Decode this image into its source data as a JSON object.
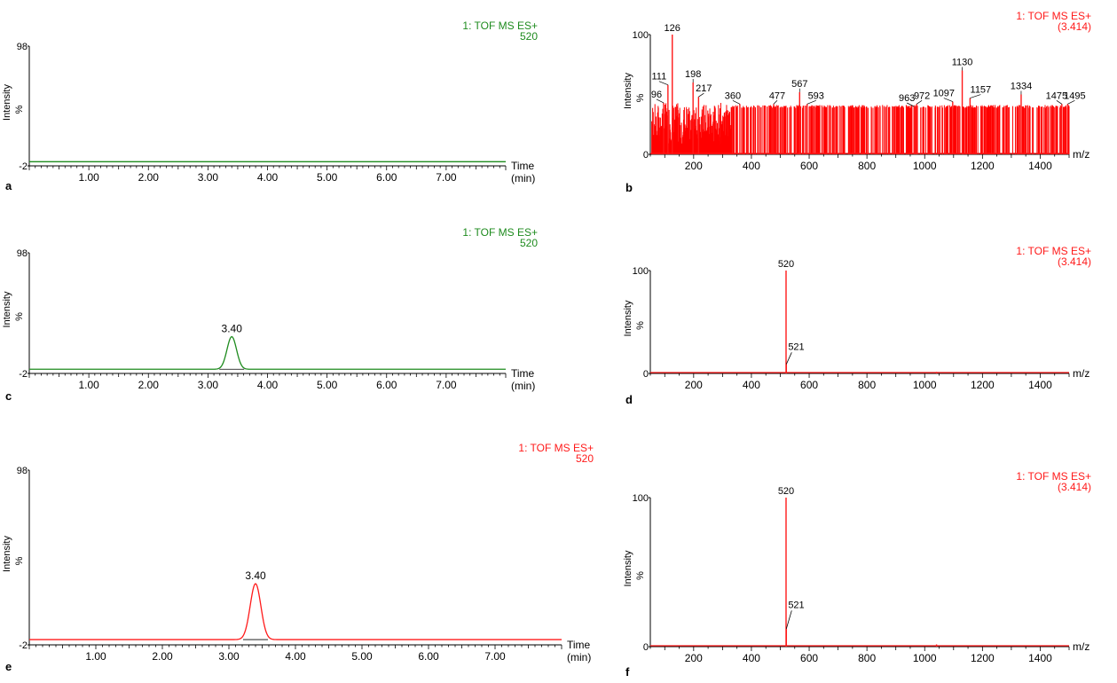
{
  "colors": {
    "green": "#1e8b1e",
    "red": "#ff1a1a",
    "axis": "#000000",
    "spec_b_fill": "#ff0000"
  },
  "chart_data": [
    {
      "id": "a",
      "type": "line",
      "panel_label": "a",
      "title_lines": [
        "1: TOF MS ES+",
        "520"
      ],
      "title_color": "green",
      "line_color": "green",
      "xlabel_lines": [
        "Time",
        "(min)"
      ],
      "ylabel": "Intensity",
      "ylabel_unit": "%",
      "xlim": [
        0,
        8.0
      ],
      "ylim": [
        -2,
        98
      ],
      "x_ticks": [
        "1.00",
        "2.00",
        "3.00",
        "4.00",
        "5.00",
        "6.00",
        "7.00"
      ],
      "y_ticks": [
        "98",
        "-2"
      ],
      "baseline": 0,
      "peaks": [],
      "annotations": []
    },
    {
      "id": "b",
      "type": "bar",
      "panel_label": "b",
      "title_lines": [
        "1: TOF MS ES+",
        "(3.414)"
      ],
      "title_color": "red",
      "line_color": "red",
      "xlabel_lines": [
        "m/z"
      ],
      "ylabel": "Intensity",
      "ylabel_unit": "%",
      "xlim": [
        50,
        1500
      ],
      "ylim": [
        0,
        100
      ],
      "x_ticks": [
        "200",
        "400",
        "600",
        "800",
        "1000",
        "1200",
        "1400"
      ],
      "y_ticks": [
        "100",
        "0"
      ],
      "noise": {
        "from": 55,
        "to": 1500,
        "level": 40,
        "dense_until": 330
      },
      "peaks": [
        {
          "x": 96,
          "y": 43,
          "label": "96"
        },
        {
          "x": 111,
          "y": 58,
          "label": "111"
        },
        {
          "x": 126,
          "y": 100,
          "label": "126"
        },
        {
          "x": 198,
          "y": 60,
          "label": "198"
        },
        {
          "x": 217,
          "y": 48,
          "label": "217"
        },
        {
          "x": 360,
          "y": 42,
          "label": "360"
        },
        {
          "x": 477,
          "y": 42,
          "label": "477"
        },
        {
          "x": 567,
          "y": 52,
          "label": "567"
        },
        {
          "x": 593,
          "y": 42,
          "label": "593"
        },
        {
          "x": 963,
          "y": 40,
          "label": "963"
        },
        {
          "x": 972,
          "y": 42,
          "label": "972"
        },
        {
          "x": 1097,
          "y": 44,
          "label": "1097"
        },
        {
          "x": 1130,
          "y": 70,
          "label": "1130"
        },
        {
          "x": 1157,
          "y": 47,
          "label": "1157"
        },
        {
          "x": 1334,
          "y": 50,
          "label": "1334"
        },
        {
          "x": 1475,
          "y": 42,
          "label": "1475"
        },
        {
          "x": 1495,
          "y": 42,
          "label": "1495"
        }
      ]
    },
    {
      "id": "c",
      "type": "line",
      "panel_label": "c",
      "title_lines": [
        "1: TOF MS ES+",
        "520"
      ],
      "title_color": "green",
      "line_color": "green",
      "xlabel_lines": [
        "Time",
        "(min)"
      ],
      "ylabel": "Intensity",
      "ylabel_unit": "%",
      "xlim": [
        0,
        8.0
      ],
      "ylim": [
        -2,
        98
      ],
      "x_ticks": [
        "1.00",
        "2.00",
        "3.00",
        "4.00",
        "5.00",
        "6.00",
        "7.00"
      ],
      "y_ticks": [
        "98",
        "-2"
      ],
      "baseline": 0,
      "peaks": [
        {
          "x": 3.4,
          "y": 27,
          "width": 0.08,
          "label": "3.40"
        }
      ]
    },
    {
      "id": "d",
      "type": "bar",
      "panel_label": "d",
      "title_lines": [
        "1: TOF MS ES+",
        "(3.414)"
      ],
      "title_color": "red",
      "line_color": "red",
      "xlabel_lines": [
        "m/z"
      ],
      "ylabel": "Intensity",
      "ylabel_unit": "%",
      "xlim": [
        50,
        1500
      ],
      "ylim": [
        0,
        100
      ],
      "x_ticks": [
        "200",
        "400",
        "600",
        "800",
        "1000",
        "1200",
        "1400"
      ],
      "y_ticks": [
        "100",
        "0"
      ],
      "peaks": [
        {
          "x": 520,
          "y": 100,
          "label": "520"
        },
        {
          "x": 521,
          "y": 9,
          "label": "521"
        },
        {
          "x": 1041,
          "y": 1.5,
          "label": ""
        }
      ]
    },
    {
      "id": "e",
      "type": "line",
      "panel_label": "e",
      "title_lines": [
        "1: TOF MS ES+",
        "520"
      ],
      "title_color": "red",
      "line_color": "red",
      "xlabel_lines": [
        "Time",
        "(min)"
      ],
      "ylabel": "Intensity",
      "ylabel_unit": "%",
      "xlim": [
        0,
        8.0
      ],
      "ylim": [
        -2,
        98
      ],
      "x_ticks": [
        "1.00",
        "2.00",
        "3.00",
        "4.00",
        "5.00",
        "6.00",
        "7.00"
      ],
      "y_ticks": [
        "98",
        "-2"
      ],
      "baseline": 0,
      "peaks": [
        {
          "x": 3.4,
          "y": 32,
          "width": 0.08,
          "label": "3.40"
        }
      ]
    },
    {
      "id": "f",
      "type": "bar",
      "panel_label": "f",
      "title_lines": [
        "1: TOF MS ES+",
        "(3.414)"
      ],
      "title_color": "red",
      "line_color": "red",
      "xlabel_lines": [
        "m/z"
      ],
      "ylabel": "Intensity",
      "ylabel_unit": "%",
      "xlim": [
        50,
        1500
      ],
      "ylim": [
        0,
        100
      ],
      "x_ticks": [
        "200",
        "400",
        "600",
        "800",
        "1000",
        "1200",
        "1400"
      ],
      "y_ticks": [
        "100",
        "0"
      ],
      "peaks": [
        {
          "x": 520,
          "y": 100,
          "label": "520"
        },
        {
          "x": 521,
          "y": 12,
          "label": "521"
        },
        {
          "x": 1041,
          "y": 1.5,
          "label": ""
        }
      ]
    }
  ]
}
